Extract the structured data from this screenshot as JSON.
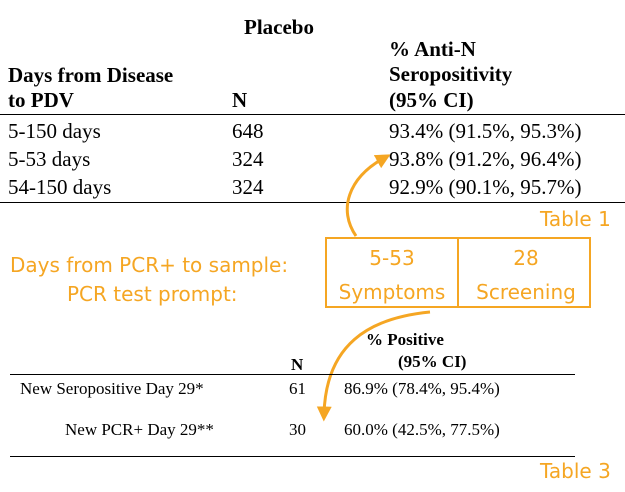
{
  "table1": {
    "group_header": "Placebo",
    "col1_header": [
      "Days from Disease",
      "to PDV"
    ],
    "col2_header": "N",
    "col3_header": [
      "% Anti-N",
      "Seropositivity",
      "(95% CI)"
    ],
    "rows": [
      {
        "days": "5-150 days",
        "n": "648",
        "pct": "93.4% (91.5%, 95.3%)"
      },
      {
        "days": "5-53 days",
        "n": "324",
        "pct": "93.8% (91.2%, 96.4%)"
      },
      {
        "days": "54-150 days",
        "n": "324",
        "pct": "92.9% (90.1%, 95.7%)"
      }
    ],
    "caption": "Table 1"
  },
  "mapping": {
    "label1": "Days from PCR+ to sample:",
    "label2": "PCR test prompt:",
    "box_left": {
      "top": "5-53",
      "bottom": "Symptoms"
    },
    "box_right": {
      "top": "28",
      "bottom": "Screening"
    }
  },
  "table3": {
    "col_n_header": "N",
    "col_pct_header": [
      "% Positive",
      "(95% CI)"
    ],
    "rows": [
      {
        "label": "New Seropositive Day 29*",
        "n": "61",
        "pct": "86.9% (78.4%, 95.4%)"
      },
      {
        "label": "New PCR+ Day 29**",
        "n": "30",
        "pct": "60.0% (42.5%, 77.5%)"
      }
    ],
    "caption": "Table 3"
  },
  "colors": {
    "accent": "#f5a623"
  }
}
